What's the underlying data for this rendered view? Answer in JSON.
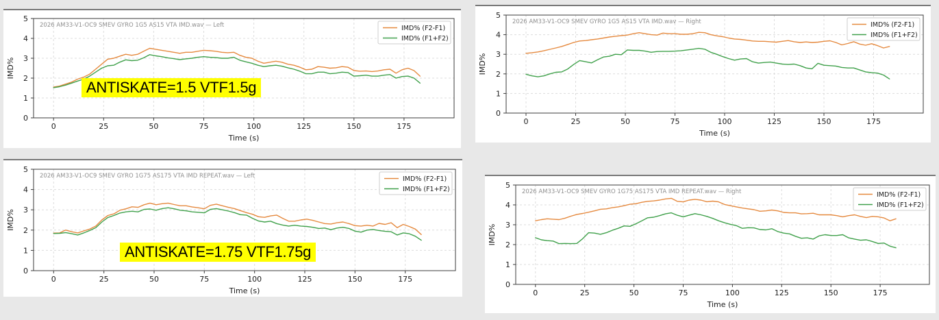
{
  "page": {
    "background": "#e8e8e8",
    "panel_background": "#ffffff"
  },
  "colors": {
    "orange": "#e5893e",
    "green": "#3fa04a",
    "title": "#8f8f8f",
    "grid": "#dcdcdc",
    "spine": "#3b3b3b",
    "tick_text": "#1a1a1a",
    "annotation_bg": "#ffff00",
    "annotation_text": "#000000"
  },
  "chart_data": [
    {
      "type": "line",
      "title": "2026 AM33-V1-OC9 SMEV GYRO 1G5 AS15 VTA IMD.wav — Left",
      "xlabel": "Time (s)",
      "ylabel": "IMD%",
      "xlim": [
        -10,
        200
      ],
      "ylim": [
        0,
        5
      ],
      "xticks": [
        0,
        25,
        50,
        75,
        100,
        125,
        150,
        175
      ],
      "yticks": [
        0,
        1,
        2,
        3,
        4,
        5
      ],
      "grid": true,
      "legend_position": "top-right",
      "annotation": {
        "text": "ANTISKATE=1.5 VTF1.5g",
        "x": 14,
        "y": 1.52
      },
      "x": [
        0,
        3,
        6,
        9,
        12,
        15,
        18,
        21,
        24,
        27,
        30,
        33,
        36,
        39,
        42,
        45,
        48,
        51,
        54,
        57,
        60,
        63,
        66,
        69,
        72,
        75,
        78,
        81,
        84,
        87,
        90,
        93,
        96,
        99,
        102,
        105,
        108,
        111,
        114,
        117,
        120,
        123,
        126,
        129,
        132,
        135,
        138,
        141,
        144,
        147,
        150,
        153,
        156,
        159,
        162,
        165,
        168,
        171,
        174,
        177,
        180,
        183
      ],
      "series": [
        {
          "name": "IMD% (F2-F1)",
          "color": "#e5893e",
          "values": [
            1.55,
            1.6,
            1.7,
            1.8,
            1.95,
            2.05,
            2.2,
            2.45,
            2.7,
            2.95,
            3.0,
            3.1,
            3.2,
            3.15,
            3.2,
            3.35,
            3.5,
            3.45,
            3.4,
            3.35,
            3.3,
            3.25,
            3.3,
            3.3,
            3.35,
            3.4,
            3.38,
            3.35,
            3.3,
            3.28,
            3.3,
            3.15,
            3.05,
            3.0,
            2.85,
            2.75,
            2.8,
            2.85,
            2.8,
            2.7,
            2.65,
            2.55,
            2.42,
            2.45,
            2.58,
            2.55,
            2.5,
            2.52,
            2.58,
            2.55,
            2.38,
            2.35,
            2.36,
            2.33,
            2.36,
            2.42,
            2.45,
            2.25,
            2.42,
            2.5,
            2.38,
            2.1
          ]
        },
        {
          "name": "IMD% (F1+F2)",
          "color": "#3fa04a",
          "values": [
            1.52,
            1.57,
            1.65,
            1.75,
            1.85,
            1.95,
            2.1,
            2.3,
            2.5,
            2.62,
            2.65,
            2.8,
            2.92,
            2.88,
            2.9,
            3.02,
            3.18,
            3.12,
            3.08,
            3.02,
            2.98,
            2.93,
            2.97,
            3.0,
            3.05,
            3.08,
            3.05,
            3.03,
            3.0,
            3.0,
            3.05,
            2.9,
            2.82,
            2.75,
            2.65,
            2.58,
            2.62,
            2.65,
            2.6,
            2.52,
            2.45,
            2.35,
            2.22,
            2.22,
            2.3,
            2.3,
            2.22,
            2.25,
            2.3,
            2.28,
            2.1,
            2.12,
            2.15,
            2.1,
            2.1,
            2.15,
            2.18,
            2.0,
            2.08,
            2.1,
            2.0,
            1.75
          ]
        }
      ]
    },
    {
      "type": "line",
      "title": "2026 AM33-V1-OC9 SMEV GYRO 1G5 AS15 VTA IMD.wav — Right",
      "xlabel": "Time (s)",
      "ylabel": "IMD%",
      "xlim": [
        -10,
        200
      ],
      "ylim": [
        0,
        5
      ],
      "xticks": [
        0,
        25,
        50,
        75,
        100,
        125,
        150,
        175
      ],
      "yticks": [
        0,
        1,
        2,
        3,
        4,
        5
      ],
      "grid": true,
      "legend_position": "top-right",
      "annotation": null,
      "x": [
        0,
        3,
        6,
        9,
        12,
        15,
        18,
        21,
        24,
        27,
        30,
        33,
        36,
        39,
        42,
        45,
        48,
        51,
        54,
        57,
        60,
        63,
        66,
        69,
        72,
        75,
        78,
        81,
        84,
        87,
        90,
        93,
        96,
        99,
        102,
        105,
        108,
        111,
        114,
        117,
        120,
        123,
        126,
        129,
        132,
        135,
        138,
        141,
        144,
        147,
        150,
        153,
        156,
        159,
        162,
        165,
        168,
        171,
        174,
        177,
        180,
        183
      ],
      "series": [
        {
          "name": "IMD% (F2-F1)",
          "color": "#e5893e",
          "values": [
            3.05,
            3.08,
            3.12,
            3.18,
            3.25,
            3.32,
            3.4,
            3.5,
            3.6,
            3.68,
            3.7,
            3.74,
            3.78,
            3.83,
            3.88,
            3.92,
            3.95,
            3.98,
            4.05,
            4.1,
            4.05,
            4.0,
            3.98,
            4.08,
            4.05,
            4.05,
            4.02,
            4.02,
            4.05,
            4.12,
            4.1,
            4.0,
            3.94,
            3.9,
            3.83,
            3.78,
            3.76,
            3.72,
            3.68,
            3.66,
            3.66,
            3.64,
            3.62,
            3.66,
            3.7,
            3.64,
            3.6,
            3.63,
            3.6,
            3.62,
            3.66,
            3.69,
            3.6,
            3.48,
            3.55,
            3.64,
            3.52,
            3.46,
            3.54,
            3.44,
            3.32,
            3.4
          ]
        },
        {
          "name": "IMD% (F1+F2)",
          "color": "#3fa04a",
          "values": [
            1.98,
            1.9,
            1.85,
            1.9,
            2.0,
            2.08,
            2.1,
            2.25,
            2.48,
            2.68,
            2.62,
            2.56,
            2.72,
            2.86,
            2.9,
            3.0,
            2.98,
            3.22,
            3.2,
            3.2,
            3.16,
            3.1,
            3.14,
            3.15,
            3.15,
            3.16,
            3.18,
            3.22,
            3.26,
            3.3,
            3.26,
            3.1,
            3.0,
            2.88,
            2.78,
            2.7,
            2.76,
            2.78,
            2.62,
            2.55,
            2.58,
            2.6,
            2.55,
            2.5,
            2.48,
            2.5,
            2.42,
            2.3,
            2.26,
            2.54,
            2.44,
            2.42,
            2.4,
            2.33,
            2.3,
            2.3,
            2.2,
            2.1,
            2.06,
            2.04,
            1.94,
            1.74
          ]
        }
      ]
    },
    {
      "type": "line",
      "title": "2026 AM33-V1-OC9 SMEV GYRO 1G75 AS175 VTA IMD REPEAT.wav — Left",
      "xlabel": "Time (s)",
      "ylabel": "IMD%",
      "xlim": [
        -10,
        200
      ],
      "ylim": [
        0,
        5
      ],
      "xticks": [
        0,
        25,
        50,
        75,
        100,
        125,
        150,
        175
      ],
      "yticks": [
        0,
        1,
        2,
        3,
        4,
        5
      ],
      "grid": true,
      "legend_position": "top-right",
      "annotation": {
        "text": "ANTISKATE=1.75 VTF1.75g",
        "x": 33,
        "y": 0.9
      },
      "x": [
        0,
        3,
        6,
        9,
        12,
        15,
        18,
        21,
        24,
        27,
        30,
        33,
        36,
        39,
        42,
        45,
        48,
        51,
        54,
        57,
        60,
        63,
        66,
        69,
        72,
        75,
        78,
        81,
        84,
        87,
        90,
        93,
        96,
        99,
        102,
        105,
        108,
        111,
        114,
        117,
        120,
        123,
        126,
        129,
        132,
        135,
        138,
        141,
        144,
        147,
        150,
        153,
        156,
        159,
        162,
        165,
        168,
        171,
        174,
        177,
        180,
        183
      ],
      "series": [
        {
          "name": "IMD% (F2-F1)",
          "color": "#e5893e",
          "values": [
            1.85,
            1.86,
            2.0,
            1.92,
            1.86,
            1.96,
            2.05,
            2.2,
            2.5,
            2.72,
            2.8,
            2.98,
            3.05,
            3.15,
            3.12,
            3.25,
            3.33,
            3.25,
            3.3,
            3.33,
            3.26,
            3.2,
            3.2,
            3.14,
            3.1,
            3.05,
            3.22,
            3.28,
            3.2,
            3.12,
            3.06,
            2.96,
            2.86,
            2.78,
            2.66,
            2.63,
            2.7,
            2.74,
            2.58,
            2.44,
            2.44,
            2.5,
            2.54,
            2.48,
            2.4,
            2.32,
            2.3,
            2.36,
            2.4,
            2.32,
            2.22,
            2.2,
            2.24,
            2.2,
            2.33,
            2.28,
            2.36,
            2.12,
            2.28,
            2.18,
            2.05,
            1.78
          ]
        },
        {
          "name": "IMD% (F1+F2)",
          "color": "#3fa04a",
          "values": [
            1.83,
            1.84,
            1.88,
            1.82,
            1.76,
            1.86,
            1.98,
            2.12,
            2.4,
            2.62,
            2.72,
            2.84,
            2.9,
            2.93,
            2.9,
            3.02,
            3.04,
            2.98,
            3.06,
            3.1,
            3.05,
            2.98,
            2.95,
            2.9,
            2.88,
            2.85,
            3.02,
            3.06,
            3.0,
            2.94,
            2.86,
            2.76,
            2.74,
            2.58,
            2.45,
            2.4,
            2.44,
            2.32,
            2.25,
            2.2,
            2.24,
            2.2,
            2.18,
            2.14,
            2.08,
            2.1,
            2.02,
            2.1,
            2.14,
            2.08,
            1.95,
            1.9,
            2.0,
            2.03,
            1.98,
            1.94,
            1.92,
            1.76,
            1.86,
            1.82,
            1.7,
            1.5
          ]
        }
      ]
    },
    {
      "type": "line",
      "title": "2026 AM33-V1-OC9 SMEV GYRO 1G75 AS175 VTA IMD REPEAT.wav — Right",
      "xlabel": "Time (s)",
      "ylabel": "IMD%",
      "xlim": [
        -10,
        200
      ],
      "ylim": [
        0,
        5
      ],
      "xticks": [
        0,
        25,
        50,
        75,
        100,
        125,
        150,
        175
      ],
      "yticks": [
        0,
        1,
        2,
        3,
        4,
        5
      ],
      "grid": true,
      "legend_position": "top-right",
      "annotation": null,
      "x": [
        0,
        3,
        6,
        9,
        12,
        15,
        18,
        21,
        24,
        27,
        30,
        33,
        36,
        39,
        42,
        45,
        48,
        51,
        54,
        57,
        60,
        63,
        66,
        69,
        72,
        75,
        78,
        81,
        84,
        87,
        90,
        93,
        96,
        99,
        102,
        105,
        108,
        111,
        114,
        117,
        120,
        123,
        126,
        129,
        132,
        135,
        138,
        141,
        144,
        147,
        150,
        153,
        156,
        159,
        162,
        165,
        168,
        171,
        174,
        177,
        180,
        183
      ],
      "series": [
        {
          "name": "IMD% (F2-F1)",
          "color": "#e5893e",
          "values": [
            3.2,
            3.26,
            3.3,
            3.28,
            3.26,
            3.33,
            3.43,
            3.52,
            3.57,
            3.63,
            3.7,
            3.78,
            3.8,
            3.86,
            3.9,
            3.96,
            4.03,
            4.06,
            4.13,
            4.18,
            4.2,
            4.24,
            4.3,
            4.33,
            4.18,
            4.15,
            4.24,
            4.28,
            4.24,
            4.16,
            4.19,
            4.15,
            4.02,
            3.96,
            3.9,
            3.84,
            3.8,
            3.76,
            3.68,
            3.7,
            3.74,
            3.7,
            3.62,
            3.6,
            3.6,
            3.55,
            3.56,
            3.58,
            3.5,
            3.5,
            3.5,
            3.46,
            3.4,
            3.46,
            3.5,
            3.42,
            3.36,
            3.42,
            3.4,
            3.34,
            3.2,
            3.3
          ]
        },
        {
          "name": "IMD% (F1+F2)",
          "color": "#3fa04a",
          "values": [
            2.35,
            2.24,
            2.2,
            2.18,
            2.05,
            2.06,
            2.05,
            2.06,
            2.3,
            2.6,
            2.58,
            2.52,
            2.6,
            2.72,
            2.82,
            2.94,
            2.92,
            3.05,
            3.2,
            3.35,
            3.38,
            3.46,
            3.55,
            3.6,
            3.48,
            3.4,
            3.48,
            3.56,
            3.5,
            3.42,
            3.32,
            3.2,
            3.1,
            3.02,
            2.96,
            2.82,
            2.85,
            2.84,
            2.76,
            2.74,
            2.8,
            2.66,
            2.58,
            2.54,
            2.42,
            2.32,
            2.34,
            2.28,
            2.44,
            2.5,
            2.46,
            2.46,
            2.5,
            2.34,
            2.28,
            2.22,
            2.24,
            2.16,
            2.06,
            2.08,
            1.92,
            1.84
          ]
        }
      ]
    }
  ]
}
